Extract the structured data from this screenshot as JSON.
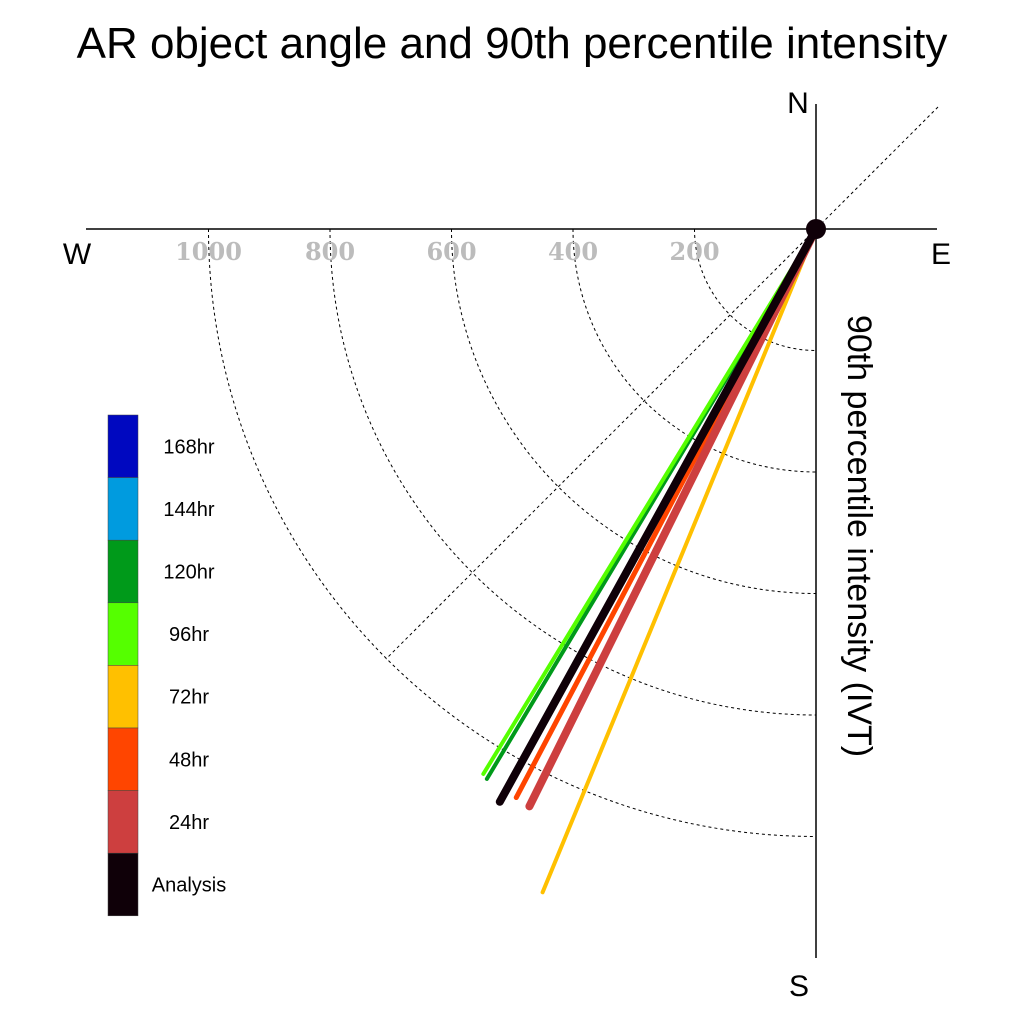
{
  "chart_data": {
    "type": "polar-vector",
    "title": "AR object angle and 90th percentile intensity",
    "radial_label": "90th percentile intensity (IVT)",
    "compass": {
      "n": "N",
      "s": "S",
      "e": "E",
      "w": "W"
    },
    "radial_ticks": [
      200,
      400,
      600,
      800,
      1000
    ],
    "rmax": 1200,
    "grid": true,
    "legend_position": "left",
    "series": [
      {
        "name": "168hr",
        "color": "#0008c0",
        "show": false
      },
      {
        "name": "144hr",
        "color": "#009bdf",
        "show": false
      },
      {
        "name": "120hr",
        "color": "#009a1a",
        "magnitude": 1055,
        "angle_from_north_deg": 210.9,
        "width": 4
      },
      {
        "name": "96hr",
        "color": "#55ff00",
        "magnitude": 1051,
        "angle_from_north_deg": 211.4,
        "width": 4
      },
      {
        "name": "72hr",
        "color": "#ffc000",
        "magnitude": 1181,
        "angle_from_north_deg": 202.4,
        "width": 4
      },
      {
        "name": "48hr",
        "color": "#ff4500",
        "magnitude": 1058,
        "angle_from_north_deg": 207.8,
        "width": 5
      },
      {
        "name": "24hr",
        "color": "#cd3f3f",
        "magnitude": 1061,
        "angle_from_north_deg": 206.4,
        "width": 8
      },
      {
        "name": "Analysis",
        "color": "#0f0008",
        "magnitude": 1077,
        "angle_from_north_deg": 208.9,
        "width": 8
      }
    ]
  }
}
